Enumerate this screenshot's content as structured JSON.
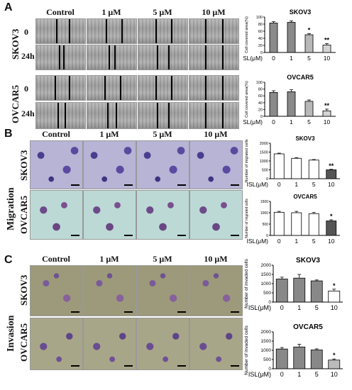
{
  "panels": {
    "A": {
      "label": "A",
      "columns": [
        "Control",
        "1 μM",
        "5 μM",
        "10 μM"
      ],
      "cell_lines": [
        "SKOV3",
        "OVCAR5"
      ],
      "time_points": [
        "0",
        "24h"
      ]
    },
    "B": {
      "label": "B",
      "side_label": "Migration",
      "columns": [
        "Control",
        "1 μM",
        "5 μM",
        "10 μM"
      ],
      "cell_lines": [
        "SKOV3",
        "OVCAR5"
      ]
    },
    "C": {
      "label": "C",
      "side_label": "Invasion",
      "columns": [
        "Control",
        "1 μM",
        "5 μM",
        "10 μM"
      ],
      "cell_lines": [
        "SKOV3",
        "OVCAR5"
      ]
    }
  },
  "chart_data": [
    {
      "id": "A-SKOV3",
      "type": "bar",
      "title": "SKOV3",
      "categories": [
        "0",
        "1",
        "5",
        "10"
      ],
      "xlabel": "ISL(μM)",
      "ylabel": "Cell covered area(%)",
      "ylim": [
        0,
        100
      ],
      "yticks": [
        0,
        20,
        40,
        60,
        80,
        100
      ],
      "values": [
        83,
        85,
        50,
        21
      ],
      "errors": [
        4,
        4,
        3,
        4
      ],
      "sig": [
        "",
        "",
        "*",
        "**"
      ],
      "fills": [
        "#8a8a8a",
        "#8a8a8a",
        "#b8b8b8",
        "#d4d4d4"
      ]
    },
    {
      "id": "A-OVCAR5",
      "type": "bar",
      "title": "OVCAR5",
      "categories": [
        "0",
        "1",
        "5",
        "10"
      ],
      "xlabel": "ISL(μM)",
      "ylabel": "Cell covered area(%)",
      "ylim": [
        0,
        100
      ],
      "yticks": [
        0,
        20,
        40,
        60,
        80,
        100
      ],
      "values": [
        70,
        72,
        44,
        16
      ],
      "errors": [
        5,
        6,
        4,
        5
      ],
      "sig": [
        "",
        "",
        "",
        "**"
      ],
      "fills": [
        "#8a8a8a",
        "#8a8a8a",
        "#b8b8b8",
        "#d4d4d4"
      ]
    },
    {
      "id": "B-SKOV3",
      "type": "bar",
      "title": "SKOV3",
      "categories": [
        "0",
        "1",
        "5",
        "10"
      ],
      "xlabel": "ISL(μM)",
      "ylabel": "Number of migrated cells",
      "ylim": [
        0,
        2000
      ],
      "yticks": [
        0,
        500,
        1000,
        1500,
        2000
      ],
      "values": [
        1400,
        1150,
        1050,
        500
      ],
      "errors": [
        40,
        40,
        30,
        30
      ],
      "sig": [
        "",
        "",
        "",
        "**"
      ],
      "fills": [
        "#ffffff",
        "#ffffff",
        "#ffffff",
        "#555555"
      ]
    },
    {
      "id": "B-OVCAR5",
      "type": "bar",
      "title": "OVCAR5",
      "categories": [
        "0",
        "1",
        "5",
        "10"
      ],
      "xlabel": "ISL(μM)",
      "ylabel": "Number of migrated cells",
      "ylim": [
        0,
        1500
      ],
      "yticks": [
        0,
        500,
        1000,
        1500
      ],
      "values": [
        1020,
        1000,
        960,
        640
      ],
      "errors": [
        40,
        60,
        50,
        50
      ],
      "sig": [
        "",
        "",
        "",
        "*"
      ],
      "fills": [
        "#ffffff",
        "#ffffff",
        "#ffffff",
        "#555555"
      ]
    },
    {
      "id": "C-SKOV3",
      "type": "bar",
      "title": "SKOV3",
      "categories": [
        "0",
        "1",
        "5",
        "10"
      ],
      "xlabel": "ISL(μM)",
      "ylabel": "Number of invaded cells",
      "ylim": [
        0,
        2000
      ],
      "yticks": [
        0,
        500,
        1000,
        1500,
        2000
      ],
      "values": [
        1250,
        1300,
        1150,
        600
      ],
      "errors": [
        100,
        200,
        50,
        100
      ],
      "sig": [
        "",
        "",
        "",
        "*"
      ],
      "fills": [
        "#888888",
        "#888888",
        "#888888",
        "#ffffff"
      ]
    },
    {
      "id": "C-OVCAR5",
      "type": "bar",
      "title": "OVCAR5",
      "categories": [
        "0",
        "1",
        "5",
        "10"
      ],
      "xlabel": "ISL(μM)",
      "ylabel": "Number of invaded cells",
      "ylim": [
        0,
        2000
      ],
      "yticks": [
        0,
        500,
        1000,
        1500,
        2000
      ],
      "values": [
        1070,
        1180,
        1020,
        470
      ],
      "errors": [
        80,
        150,
        60,
        60
      ],
      "sig": [
        "",
        "",
        "",
        "*"
      ],
      "fills": [
        "#888888",
        "#888888",
        "#888888",
        "#bbbbbb"
      ]
    }
  ]
}
